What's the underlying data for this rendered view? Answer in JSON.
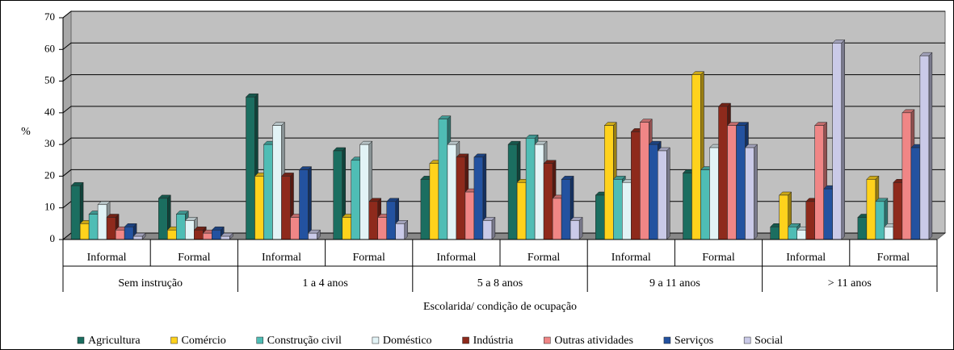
{
  "chart_data": {
    "type": "bar",
    "ylabel": "%",
    "xlabel": "Escolarida/ condição de ocupação",
    "categories": [
      "Informal",
      "Formal",
      "Informal",
      "Formal",
      "Informal",
      "Formal",
      "Informal",
      "Formal",
      "Informal",
      "Formal"
    ],
    "groups": [
      "Sem instrução",
      "1 a 4 anos",
      "5 a 8 anos",
      "9 a 11 anos",
      "> 11 anos"
    ],
    "ylim": [
      0,
      70
    ],
    "yticks": [
      0,
      10,
      20,
      30,
      40,
      50,
      60,
      70
    ],
    "grid": true,
    "legend": "bottom",
    "series": [
      {
        "name": "Agricultura",
        "color": "#1b6e60",
        "values": [
          17,
          13,
          45,
          28,
          19,
          30,
          14,
          21,
          4,
          7
        ]
      },
      {
        "name": "Comércio",
        "color": "#ffd21c",
        "values": [
          5,
          3,
          20,
          7,
          24,
          18,
          36,
          52,
          14,
          19
        ]
      },
      {
        "name": "Construção civil",
        "color": "#4fbdb5",
        "values": [
          8,
          8,
          30,
          25,
          38,
          32,
          19,
          22,
          4,
          12
        ]
      },
      {
        "name": "Doméstico",
        "color": "#e2f3f6",
        "values": [
          11,
          6,
          36,
          30,
          30,
          30,
          18,
          29,
          3,
          4
        ]
      },
      {
        "name": "Indústria",
        "color": "#8e2a1c",
        "values": [
          7,
          3,
          20,
          12,
          26,
          24,
          34,
          42,
          12,
          18
        ]
      },
      {
        "name": "Outras atividades",
        "color": "#f08686",
        "values": [
          3,
          2,
          7,
          7,
          15,
          13,
          37,
          36,
          36,
          40
        ]
      },
      {
        "name": "Serviços",
        "color": "#2352a0",
        "values": [
          4,
          3,
          22,
          12,
          26,
          19,
          30,
          36,
          16,
          29
        ]
      },
      {
        "name": "Social",
        "color": "#cacae8",
        "values": [
          1,
          1,
          2,
          5,
          6,
          6,
          28,
          29,
          62,
          58
        ]
      }
    ]
  }
}
